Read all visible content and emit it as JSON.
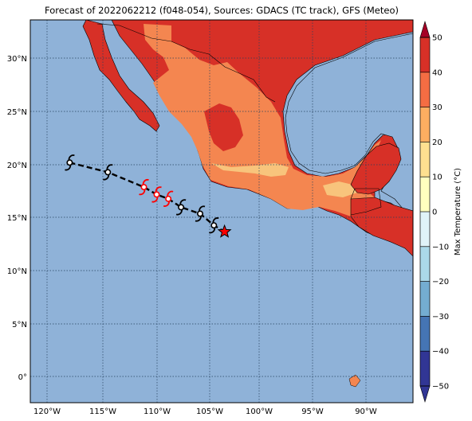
{
  "title": "Forecast of 2022062212 (f048-054), Sources: GDACS (TC track), GFS (Meteo)",
  "map": {
    "lon_ticks": [
      "120°W",
      "115°W",
      "110°W",
      "105°W",
      "100°W",
      "95°W",
      "90°W"
    ],
    "lat_ticks": [
      "30°N",
      "25°N",
      "20°N",
      "15°N",
      "10°N",
      "5°N",
      "0°"
    ],
    "colors": {
      "ocean": "#8fb2d8",
      "land_20_30": "#f48650",
      "land_30_40": "#d73027",
      "land_10_20": "#f8c47c",
      "track": "#000000",
      "storm_forecast": "#ff0000",
      "current_position": "#ff0000"
    }
  },
  "track": {
    "points_lonlat": [
      [
        -118.2,
        20.2
      ],
      [
        -114.6,
        19.3
      ],
      [
        -111.2,
        17.9
      ],
      [
        -110,
        17.2
      ],
      [
        -108.9,
        16.8
      ],
      [
        -107.7,
        16.0
      ],
      [
        -105.9,
        15.4
      ],
      [
        -104.6,
        14.3
      ],
      [
        -103.6,
        13.7
      ]
    ],
    "storm_symbols": [
      {
        "lon": -118.2,
        "lat": 20.2,
        "color": "#000000"
      },
      {
        "lon": -114.6,
        "lat": 19.3,
        "color": "#000000"
      },
      {
        "lon": -111.2,
        "lat": 17.9,
        "color": "#ff0000"
      },
      {
        "lon": -110.0,
        "lat": 17.2,
        "color": "#ff0000"
      },
      {
        "lon": -108.9,
        "lat": 16.8,
        "color": "#ff0000"
      },
      {
        "lon": -107.7,
        "lat": 16.0,
        "color": "#000000"
      },
      {
        "lon": -105.9,
        "lat": 15.4,
        "color": "#000000"
      },
      {
        "lon": -104.6,
        "lat": 14.3,
        "color": "#000000"
      }
    ],
    "current_position": {
      "lon": -103.6,
      "lat": 13.7
    }
  },
  "colorbar": {
    "label": "Max Temperature (°C)",
    "ticks": [
      "50",
      "40",
      "30",
      "20",
      "10",
      "0",
      "−10",
      "−20",
      "−30",
      "−40",
      "−50"
    ],
    "colors": [
      "#a50026",
      "#d73027",
      "#f46d43",
      "#fdae61",
      "#fee090",
      "#ffffbf",
      "#e0f3f8",
      "#abd9e9",
      "#74add1",
      "#4575b4",
      "#313695"
    ]
  }
}
